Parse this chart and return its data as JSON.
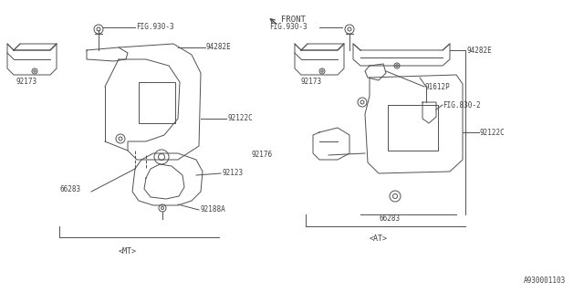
{
  "bg_color": "#ffffff",
  "fig_width": 6.4,
  "fig_height": 3.2,
  "dpi": 100,
  "mt_label": "<MT>",
  "at_label": "<AT>",
  "part_id": "A930001103",
  "front_label": "FRONT",
  "lc": "#505050",
  "tc": "#404040",
  "lw": 0.7,
  "fs": 5.5,
  "parts": {
    "fig930_3": "FIG.930-3",
    "p94282E": "94282E",
    "p92173": "92173",
    "p92122C": "92122C",
    "p92123": "92123",
    "p92188A": "92188A",
    "p66283": "66283",
    "p91612P": "91612P",
    "fig830_2": "FIG.830-2",
    "p92176": "92176"
  }
}
